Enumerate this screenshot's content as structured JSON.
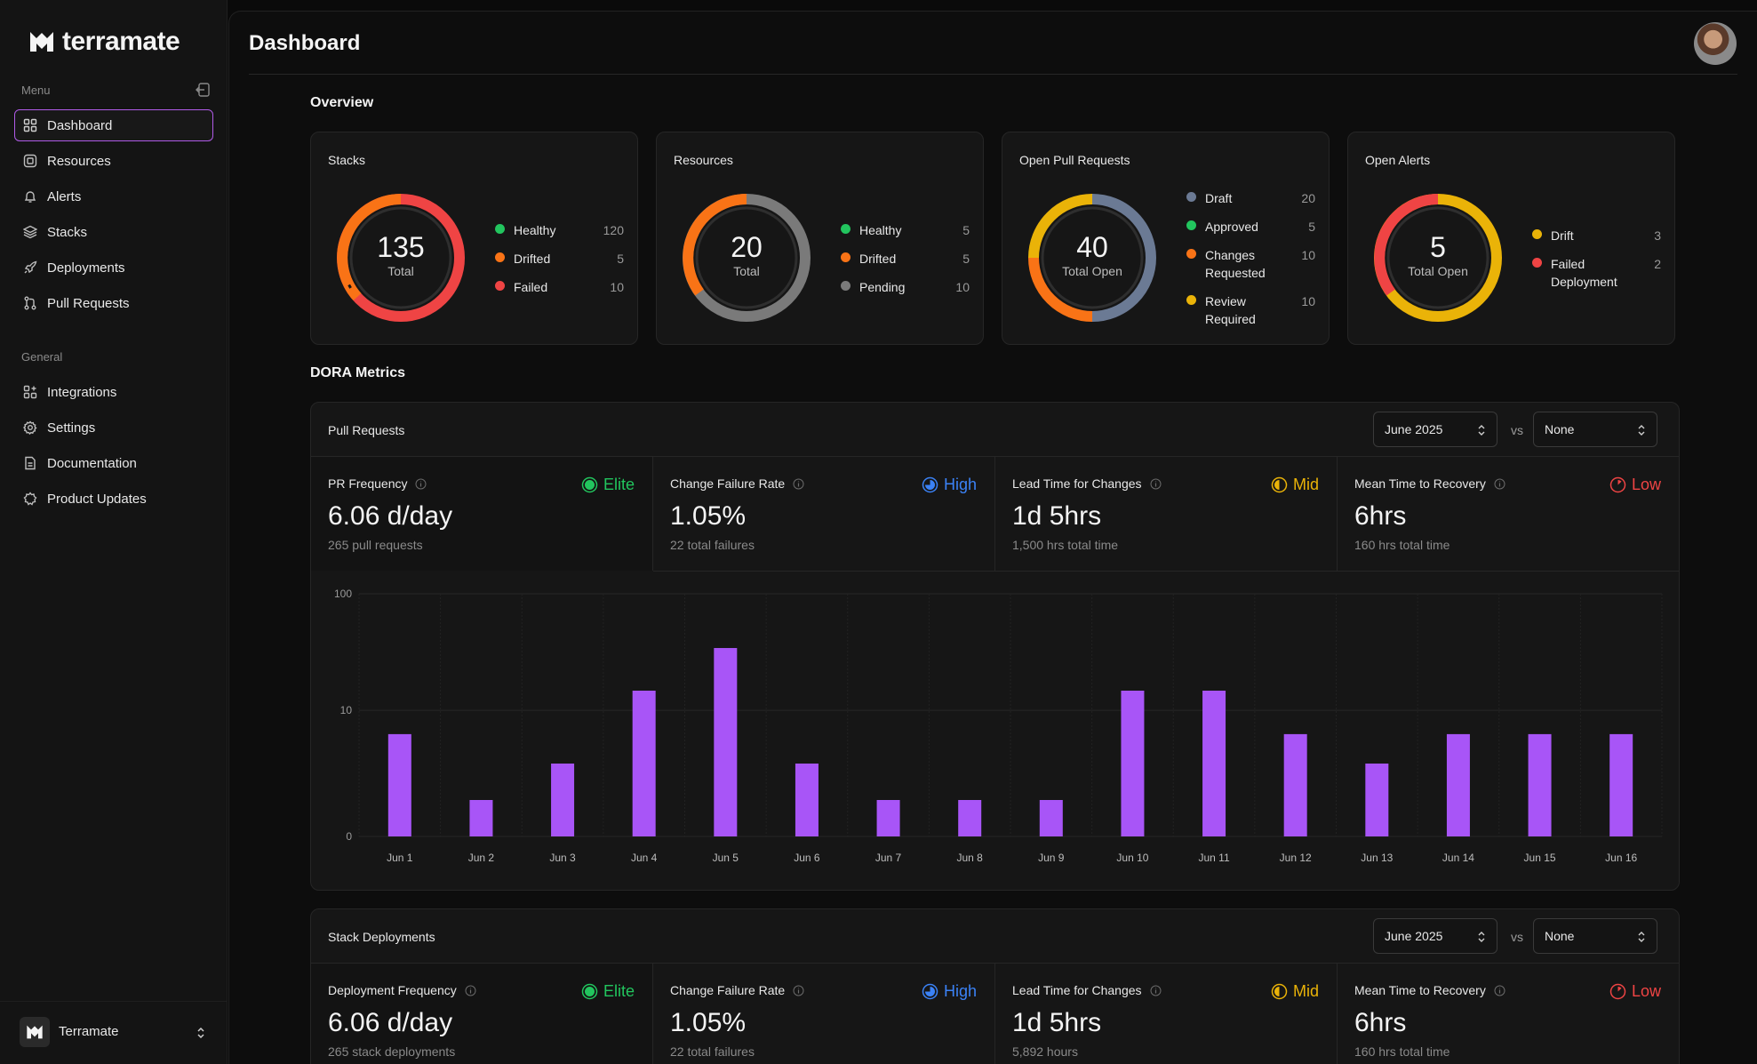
{
  "app": {
    "name": "terramate",
    "workspace": "Terramate"
  },
  "sidebar": {
    "menu_label": "Menu",
    "general_label": "General",
    "menu_items": [
      {
        "label": "Dashboard",
        "icon": "grid-icon",
        "active": true
      },
      {
        "label": "Resources",
        "icon": "cube-icon"
      },
      {
        "label": "Alerts",
        "icon": "bell-icon"
      },
      {
        "label": "Stacks",
        "icon": "layers-icon"
      },
      {
        "label": "Deployments",
        "icon": "rocket-icon"
      },
      {
        "label": "Pull Requests",
        "icon": "pull-request-icon"
      }
    ],
    "general_items": [
      {
        "label": "Integrations",
        "icon": "integrations-icon"
      },
      {
        "label": "Settings",
        "icon": "gear-icon"
      },
      {
        "label": "Documentation",
        "icon": "document-icon"
      },
      {
        "label": "Product Updates",
        "icon": "updates-icon"
      }
    ]
  },
  "header": {
    "title": "Dashboard"
  },
  "overview": {
    "title": "Overview",
    "cards": [
      {
        "title": "Stacks",
        "total": "135",
        "total_label": "Total",
        "legend": [
          {
            "label": "Healthy",
            "value": "120",
            "color": "#22c55e"
          },
          {
            "label": "Drifted",
            "value": "5",
            "color": "#f97316"
          },
          {
            "label": "Failed",
            "value": "10",
            "color": "#ef4444"
          }
        ]
      },
      {
        "title": "Resources",
        "total": "20",
        "total_label": "Total",
        "legend": [
          {
            "label": "Healthy",
            "value": "5",
            "color": "#22c55e"
          },
          {
            "label": "Drifted",
            "value": "5",
            "color": "#f97316"
          },
          {
            "label": "Pending",
            "value": "10",
            "color": "#7a7a7a"
          }
        ]
      },
      {
        "title": "Open Pull Requests",
        "total": "40",
        "total_label": "Total Open",
        "legend": [
          {
            "label": "Draft",
            "value": "20",
            "color": "#6b7a94"
          },
          {
            "label": "Approved",
            "value": "5",
            "color": "#22c55e"
          },
          {
            "label": "Changes Requested",
            "value": "10",
            "color": "#f97316"
          },
          {
            "label": "Review Required",
            "value": "10",
            "color": "#eab308"
          }
        ]
      },
      {
        "title": "Open Alerts",
        "total": "5",
        "total_label": "Total Open",
        "legend": [
          {
            "label": "Drift",
            "value": "3",
            "color": "#eab308"
          },
          {
            "label": "Failed Deployment",
            "value": "2",
            "color": "#ef4444"
          }
        ]
      }
    ]
  },
  "dora": {
    "title": "DORA Metrics",
    "panels": [
      {
        "title": "Pull Requests",
        "period": "June 2025",
        "vs": "vs",
        "compare": "None",
        "metrics": [
          {
            "label": "PR Frequency",
            "value": "6.06 d/day",
            "sub": "265 pull requests",
            "rating": "Elite",
            "rating_color": "#22c55e"
          },
          {
            "label": "Change Failure Rate",
            "value": "1.05%",
            "sub": "22 total failures",
            "rating": "High",
            "rating_color": "#3b82f6"
          },
          {
            "label": "Lead Time for Changes",
            "value": "1d 5hrs",
            "sub": "1,500 hrs total time",
            "rating": "Mid",
            "rating_color": "#eab308"
          },
          {
            "label": "Mean Time to Recovery",
            "value": "6hrs",
            "sub": "160 hrs total time",
            "rating": "Low",
            "rating_color": "#ef4444"
          }
        ]
      },
      {
        "title": "Stack Deployments",
        "period": "June 2025",
        "vs": "vs",
        "compare": "None",
        "metrics": [
          {
            "label": "Deployment Frequency",
            "value": "6.06 d/day",
            "sub": "265 stack deployments",
            "rating": "Elite",
            "rating_color": "#22c55e"
          },
          {
            "label": "Change Failure Rate",
            "value": "1.05%",
            "sub": "22 total failures",
            "rating": "High",
            "rating_color": "#3b82f6"
          },
          {
            "label": "Lead Time for Changes",
            "value": "1d 5hrs",
            "sub": "5,892 hours",
            "rating": "Mid",
            "rating_color": "#eab308"
          },
          {
            "label": "Mean Time to Recovery",
            "value": "6hrs",
            "sub": "160 hrs total time",
            "rating": "Low",
            "rating_color": "#ef4444"
          }
        ]
      }
    ]
  },
  "chart_data": {
    "type": "bar",
    "title": "PR Frequency",
    "categories": [
      "Jun 1",
      "Jun 2",
      "Jun 3",
      "Jun 4",
      "Jun 5",
      "Jun 6",
      "Jun 7",
      "Jun 8",
      "Jun 9",
      "Jun 10",
      "Jun 11",
      "Jun 12",
      "Jun 13",
      "Jun 14",
      "Jun 15",
      "Jun 16"
    ],
    "values": [
      6,
      1,
      3,
      15,
      35,
      3,
      1,
      1,
      1,
      15,
      15,
      6,
      3,
      6,
      6,
      6
    ],
    "yscale": "symlog",
    "yticks": [
      "0",
      "10",
      "100"
    ],
    "bar_color": "#a855f7"
  }
}
